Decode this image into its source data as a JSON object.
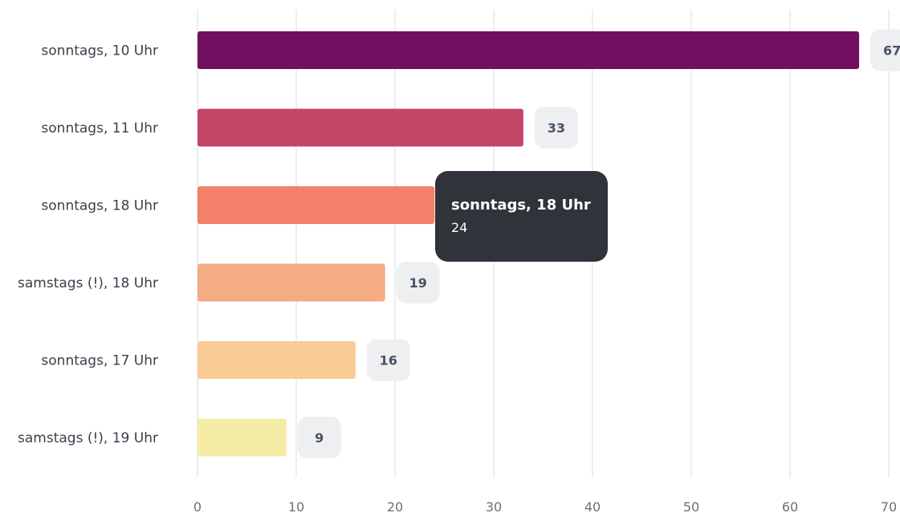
{
  "chart_data": {
    "type": "bar",
    "orientation": "horizontal",
    "categories": [
      "sonntags, 10 Uhr",
      "sonntags, 11 Uhr",
      "sonntags, 18 Uhr",
      "samstags (!), 18 Uhr",
      "sonntags, 17 Uhr",
      "samstags (!), 19 Uhr"
    ],
    "values": [
      67,
      33,
      24,
      19,
      16,
      9
    ],
    "colors": [
      "#720f61",
      "#c44566",
      "#f2806b",
      "#f5ab84",
      "#facc96",
      "#f4eba4"
    ],
    "value_labels": [
      "67",
      "33",
      "24",
      "19",
      "16",
      "9"
    ],
    "xlim": [
      0,
      70
    ],
    "xticks": [
      0,
      10,
      20,
      30,
      40,
      50,
      60,
      70
    ],
    "title": "",
    "xlabel": "",
    "ylabel": "",
    "grid": true
  },
  "tooltip": {
    "title": "sonntags, 18 Uhr",
    "value": "24"
  }
}
